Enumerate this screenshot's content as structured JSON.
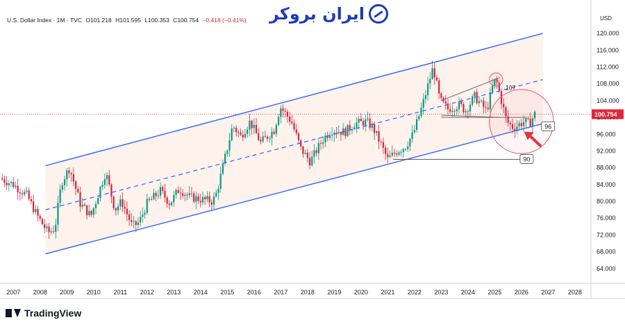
{
  "header": {
    "symbol": "U.S. Dollar Index · 1M · TVC",
    "open": "O101.218",
    "high": "H101.595",
    "low": "L100.353",
    "close": "C100.754",
    "change": "−0.418 (−0.41%)"
  },
  "brand": {
    "text": "ایران بروکر",
    "icon": "growth-arrow-icon"
  },
  "axis_currency": "USD",
  "footer": {
    "logo_text": "TradingView",
    "icon": "tradingview-logo-icon"
  },
  "colors": {
    "up": "#089981",
    "down": "#d6223f",
    "channel": "#2962ff",
    "price_line": "#e0263a",
    "arrow": "#e8303f",
    "circle": "#e0556b"
  },
  "chart_data": {
    "type": "candlestick",
    "title": "U.S. Dollar Index",
    "timeframe": "1M",
    "y_ticks": [
      64,
      68,
      72,
      76,
      80,
      84,
      88,
      92,
      96,
      100,
      104,
      108,
      112,
      116,
      120
    ],
    "y_tick_labels": [
      "64.000",
      "68.000",
      "72.000",
      "76.000",
      "80.000",
      "84.000",
      "88.000",
      "92.000",
      "96.000",
      "100.000",
      "104.000",
      "108.000",
      "112.000",
      "116.000",
      "120.000"
    ],
    "ylim": [
      60.5,
      122
    ],
    "x_ticks": [
      "2007",
      "2008",
      "2009",
      "2010",
      "2011",
      "2012",
      "2013",
      "2014",
      "2015",
      "2016",
      "2017",
      "2018",
      "2019",
      "2020",
      "2021",
      "2022",
      "2023",
      "2024",
      "2025",
      "2026",
      "2027",
      "2028"
    ],
    "xlim": [
      2006.5,
      2028.6
    ],
    "last_price": "100.754",
    "last_price_value": 100.754,
    "anchors": [
      [
        2006.5,
        85.5
      ],
      [
        2007.0,
        84.0
      ],
      [
        2007.5,
        81.5
      ],
      [
        2007.9,
        76.5
      ],
      [
        2008.3,
        72.5
      ],
      [
        2008.55,
        73.5
      ],
      [
        2008.8,
        84.5
      ],
      [
        2009.1,
        88.0
      ],
      [
        2009.5,
        79.5
      ],
      [
        2009.9,
        76.5
      ],
      [
        2010.45,
        87.0
      ],
      [
        2010.8,
        78.0
      ],
      [
        2011.05,
        80.0
      ],
      [
        2011.45,
        74.0
      ],
      [
        2011.7,
        75.0
      ],
      [
        2012.0,
        79.5
      ],
      [
        2012.5,
        82.5
      ],
      [
        2012.85,
        79.5
      ],
      [
        2013.2,
        83.0
      ],
      [
        2013.6,
        81.0
      ],
      [
        2014.0,
        80.5
      ],
      [
        2014.45,
        80.0
      ],
      [
        2014.6,
        82.0
      ],
      [
        2015.2,
        98.0
      ],
      [
        2015.5,
        95.5
      ],
      [
        2015.85,
        99.0
      ],
      [
        2016.25,
        94.0
      ],
      [
        2016.75,
        97.0
      ],
      [
        2016.98,
        102.5
      ],
      [
        2017.4,
        99.0
      ],
      [
        2017.75,
        92.5
      ],
      [
        2018.1,
        89.5
      ],
      [
        2018.6,
        95.0
      ],
      [
        2018.9,
        97.0
      ],
      [
        2019.4,
        96.5
      ],
      [
        2019.75,
        98.5
      ],
      [
        2020.2,
        99.0
      ],
      [
        2020.45,
        97.5
      ],
      [
        2020.75,
        93.5
      ],
      [
        2021.0,
        90.0
      ],
      [
        2021.35,
        92.0
      ],
      [
        2021.65,
        93.0
      ],
      [
        2021.95,
        96.0
      ],
      [
        2022.3,
        103.0
      ],
      [
        2022.7,
        112.0
      ],
      [
        2022.95,
        104.0
      ],
      [
        2023.25,
        102.0
      ],
      [
        2023.7,
        103.0
      ],
      [
        2023.9,
        101.5
      ],
      [
        2024.25,
        105.0
      ],
      [
        2024.7,
        101.5
      ],
      [
        2024.95,
        108.0
      ],
      [
        2025.05,
        109.0
      ],
      [
        2025.25,
        104.0
      ],
      [
        2025.45,
        99.0
      ],
      [
        2025.7,
        97.5
      ],
      [
        2025.95,
        98.5
      ],
      [
        2026.1,
        99.0
      ],
      [
        2026.3,
        98.5
      ],
      [
        2026.5,
        100.8
      ]
    ],
    "channel": {
      "upper": [
        [
          2008.2,
          88.5
        ],
        [
          2026.8,
          120.0
        ]
      ],
      "middle": [
        [
          2008.2,
          78.0
        ],
        [
          2026.8,
          109.0
        ]
      ],
      "lower": [
        [
          2008.2,
          67.5
        ],
        [
          2026.8,
          98.5
        ]
      ]
    },
    "annotations": [
      {
        "text": "107",
        "x": 2025.4,
        "y": 107.0
      },
      {
        "text": "96",
        "x": 2026.8,
        "y": 97.8
      },
      {
        "text": "90",
        "x": 2026.0,
        "y": 90.0
      }
    ],
    "horizontal_lines": [
      {
        "y": 90.0,
        "x_start": 2021.2,
        "x_end": 2026.0,
        "label": "90"
      }
    ],
    "support_box": {
      "x_start": 2023.0,
      "x_end": 2026.2,
      "y": 100.0
    },
    "triangle": {
      "upper": [
        [
          2023.0,
          104.0
        ],
        [
          2025.2,
          109.5
        ]
      ],
      "lower": [
        [
          2023.0,
          100.5
        ],
        [
          2025.2,
          100.0
        ]
      ]
    },
    "highlight_circles": [
      {
        "x": 2025.05,
        "y": 109.0,
        "r_years": 0.25
      },
      {
        "x": 2026.0,
        "y": 99.0,
        "r_years": 1.2
      }
    ]
  }
}
